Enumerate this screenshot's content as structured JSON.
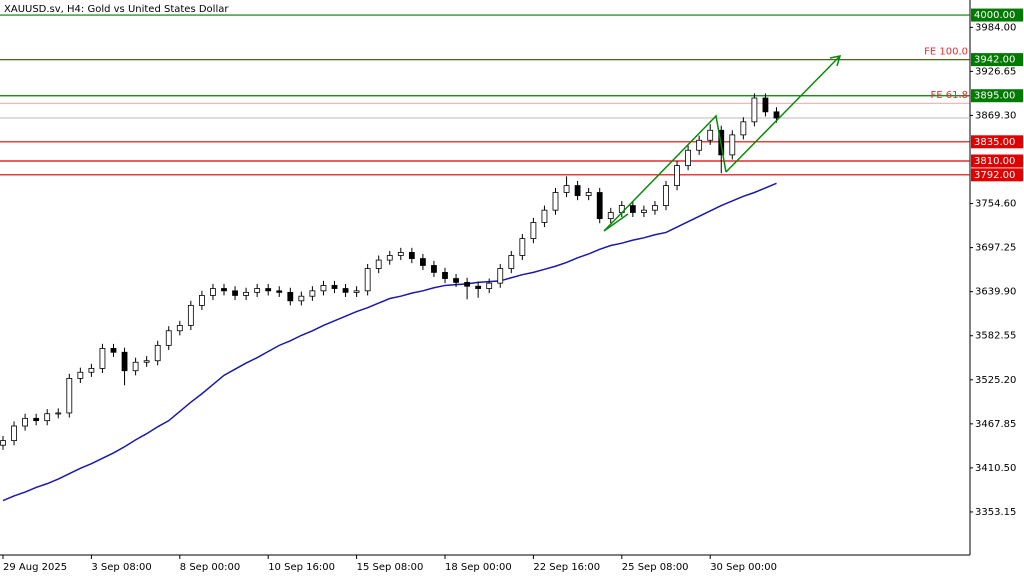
{
  "chart_data": {
    "type": "candlestick",
    "title": "XAUUSD.sv, H4:  Gold vs United States Dollar",
    "categories": [
      "29 Aug 2025",
      null,
      null,
      null,
      null,
      null,
      null,
      null,
      "3 Sep 08:00",
      null,
      null,
      null,
      null,
      null,
      null,
      null,
      "8 Sep 00:00",
      null,
      null,
      null,
      null,
      null,
      null,
      null,
      "10 Sep 16:00",
      null,
      null,
      null,
      null,
      null,
      null,
      null,
      "15 Sep 08:00",
      null,
      null,
      null,
      null,
      null,
      null,
      null,
      "18 Sep 00:00",
      null,
      null,
      null,
      null,
      null,
      null,
      null,
      "22 Sep 16:00",
      null,
      null,
      null,
      null,
      null,
      null,
      null,
      "25 Sep 08:00",
      null,
      null,
      null,
      null,
      null,
      null,
      null,
      "30 Sep 00:00",
      null,
      null,
      null,
      null,
      null,
      null
    ],
    "open": [
      3440,
      3446,
      3465,
      3475,
      3472,
      3481,
      3482,
      3527,
      3535,
      3540,
      3566,
      3561,
      3537,
      3548,
      3550,
      3570,
      3589,
      3596,
      3622,
      3635,
      3644,
      3641,
      3635,
      3639,
      3644,
      3641,
      3639,
      3628,
      3634,
      3641,
      3648,
      3644,
      3639,
      3641,
      3670,
      3681,
      3687,
      3691,
      3683,
      3674,
      3665,
      3657,
      3652,
      3647,
      3644,
      3651,
      3670,
      3687,
      3709,
      3730,
      3746,
      3769,
      3778,
      3765,
      3769,
      3735,
      3743,
      3752,
      3743,
      3746,
      3752,
      3778,
      3804,
      3824,
      3837,
      3850,
      3818,
      3844,
      3861,
      3892,
      3874
    ],
    "high": [
      3452,
      3471,
      3481,
      3481,
      3487,
      3488,
      3533,
      3541,
      3546,
      3572,
      3572,
      3567,
      3554,
      3556,
      3576,
      3595,
      3602,
      3628,
      3641,
      3650,
      3650,
      3647,
      3645,
      3650,
      3650,
      3647,
      3645,
      3640,
      3647,
      3654,
      3654,
      3650,
      3647,
      3676,
      3687,
      3693,
      3697,
      3697,
      3689,
      3680,
      3671,
      3663,
      3658,
      3653,
      3657,
      3676,
      3693,
      3715,
      3736,
      3752,
      3775,
      3790,
      3784,
      3775,
      3775,
      3749,
      3758,
      3758,
      3752,
      3758,
      3784,
      3810,
      3830,
      3843,
      3858,
      3856,
      3850,
      3867,
      3898,
      3898,
      3880
    ],
    "low": [
      3434,
      3440,
      3459,
      3466,
      3466,
      3475,
      3476,
      3521,
      3529,
      3534,
      3555,
      3518,
      3531,
      3542,
      3544,
      3564,
      3583,
      3590,
      3616,
      3629,
      3635,
      3629,
      3629,
      3633,
      3635,
      3633,
      3622,
      3622,
      3628,
      3635,
      3638,
      3633,
      3633,
      3635,
      3664,
      3675,
      3681,
      3677,
      3668,
      3659,
      3651,
      3646,
      3630,
      3632,
      3638,
      3645,
      3664,
      3681,
      3703,
      3724,
      3740,
      3763,
      3759,
      3759,
      3729,
      3729,
      3737,
      3737,
      3737,
      3740,
      3746,
      3772,
      3798,
      3818,
      3831,
      3794,
      3812,
      3838,
      3855,
      3868,
      3860
    ],
    "close": [
      3446,
      3465,
      3475,
      3472,
      3481,
      3482,
      3527,
      3535,
      3540,
      3566,
      3561,
      3537,
      3548,
      3550,
      3570,
      3589,
      3596,
      3622,
      3635,
      3644,
      3641,
      3635,
      3639,
      3644,
      3641,
      3639,
      3628,
      3634,
      3641,
      3648,
      3644,
      3639,
      3641,
      3670,
      3681,
      3687,
      3691,
      3683,
      3674,
      3665,
      3657,
      3652,
      3647,
      3644,
      3651,
      3670,
      3687,
      3709,
      3730,
      3746,
      3769,
      3778,
      3765,
      3769,
      3735,
      3743,
      3752,
      3743,
      3746,
      3752,
      3778,
      3804,
      3824,
      3837,
      3850,
      3818,
      3844,
      3861,
      3892,
      3874,
      3866
    ],
    "moving_average": {
      "color": "#1a1aa6",
      "values": [
        3368,
        3374,
        3379,
        3385,
        3390,
        3396,
        3403,
        3410,
        3416,
        3423,
        3430,
        3438,
        3447,
        3455,
        3464,
        3472,
        3484,
        3496,
        3507,
        3519,
        3531,
        3539,
        3547,
        3554,
        3562,
        3570,
        3576,
        3583,
        3589,
        3596,
        3602,
        3608,
        3614,
        3619,
        3625,
        3631,
        3634,
        3638,
        3641,
        3645,
        3648,
        3649,
        3650,
        3652,
        3653,
        3654,
        3658,
        3662,
        3665,
        3669,
        3673,
        3678,
        3684,
        3689,
        3695,
        3700,
        3703,
        3707,
        3710,
        3714,
        3717,
        3724,
        3731,
        3738,
        3745,
        3752,
        3758,
        3764,
        3769,
        3775,
        3781
      ]
    },
    "ylim": [
      3297.1,
      4019.6
    ],
    "yticks": [
      {
        "value": 3984,
        "label": "3984.00"
      },
      {
        "value": 3926.65,
        "label": "3926.65"
      },
      {
        "value": 3869.3,
        "label": "3869.30"
      },
      {
        "value": 3754.6,
        "label": "3754.60"
      },
      {
        "value": 3697.25,
        "label": "3697.25"
      },
      {
        "value": 3639.9,
        "label": "3639.90"
      },
      {
        "value": 3582.55,
        "label": "3582.55"
      },
      {
        "value": 3525.2,
        "label": "3525.20"
      },
      {
        "value": 3467.85,
        "label": "3467.85"
      },
      {
        "value": 3410.5,
        "label": "3410.50"
      },
      {
        "value": 3353.15,
        "label": "3353.15"
      }
    ],
    "levels": [
      {
        "value": 4000,
        "label": "4000.00",
        "color": "#007a00"
      },
      {
        "value": 3942,
        "label": "3942.00",
        "color": "#007a00"
      },
      {
        "value": 3895,
        "label": "3895.00",
        "color": "#007a00"
      },
      {
        "value": 3835,
        "label": "3835.00",
        "color": "#e00000"
      },
      {
        "value": 3810,
        "label": "3810.00",
        "color": "#e00000"
      },
      {
        "value": 3792,
        "label": "3792.00",
        "color": "#e00000"
      }
    ],
    "fe_levels": [
      {
        "value": 3942,
        "label": "FE 100.0"
      },
      {
        "value": 3885.3,
        "label": "FE 61.8"
      }
    ],
    "fe_color": "#e03030",
    "bull_color": "#ffffff",
    "bear_color": "#000000"
  }
}
